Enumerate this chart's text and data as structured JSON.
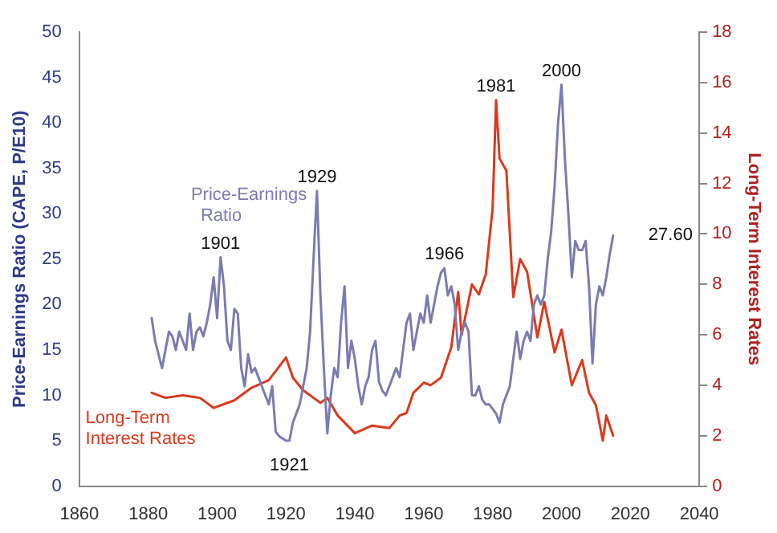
{
  "chart_data": {
    "type": "line",
    "ylabel": "Price-Earnings Ratio (CAPE, P/E10)",
    "y2label": "Long-Term Interest Rates",
    "xlim": [
      1860,
      2040
    ],
    "xticks": [
      1860,
      1880,
      1900,
      1920,
      1940,
      1960,
      1980,
      2000,
      2020,
      2040
    ],
    "ylim": [
      0,
      50
    ],
    "yticks": [
      0,
      5,
      10,
      15,
      20,
      25,
      30,
      35,
      40,
      45,
      50
    ],
    "y2lim": [
      0,
      18
    ],
    "y2ticks": [
      0,
      2,
      4,
      6,
      8,
      10,
      12,
      14,
      16,
      18
    ],
    "grid": false,
    "legend": false,
    "marker": "none",
    "line_style": "solid",
    "series": [
      {
        "name": "Price-Earnings Ratio",
        "color": "#7b7bb0",
        "x": [
          1881,
          1882,
          1883,
          1884,
          1885,
          1886,
          1887,
          1888,
          1889,
          1890,
          1891,
          1892,
          1893,
          1894,
          1895,
          1896,
          1897,
          1898,
          1899,
          1900,
          1901,
          1902,
          1903,
          1904,
          1905,
          1906,
          1907,
          1908,
          1909,
          1910,
          1911,
          1912,
          1913,
          1914,
          1915,
          1916,
          1917,
          1918,
          1920,
          1921,
          1922,
          1923,
          1924,
          1925,
          1926,
          1927,
          1928,
          1929,
          1930,
          1931,
          1932,
          1933,
          1934,
          1935,
          1936,
          1937,
          1938,
          1939,
          1940,
          1941,
          1942,
          1943,
          1944,
          1945,
          1946,
          1947,
          1948,
          1949,
          1950,
          1951,
          1952,
          1953,
          1954,
          1955,
          1956,
          1957,
          1958,
          1959,
          1960,
          1961,
          1962,
          1963,
          1964,
          1965,
          1966,
          1967,
          1968,
          1969,
          1970,
          1971,
          1972,
          1973,
          1974,
          1975,
          1976,
          1977,
          1978,
          1979,
          1980,
          1981,
          1982,
          1983,
          1984,
          1985,
          1986,
          1987,
          1988,
          1989,
          1990,
          1991,
          1992,
          1993,
          1994,
          1995,
          1996,
          1997,
          1998,
          1999,
          2000,
          2001,
          2002,
          2003,
          2004,
          2005,
          2006,
          2007,
          2008,
          2009,
          2010,
          2011,
          2012,
          2013,
          2014,
          2015
        ],
        "values": [
          18.5,
          16,
          14.5,
          13,
          15,
          17,
          16.5,
          15,
          17,
          16,
          15,
          19,
          15,
          17,
          17.5,
          16.5,
          18,
          20,
          23,
          18.5,
          25.2,
          22,
          16,
          15,
          19.5,
          19,
          13,
          11,
          14.5,
          12.5,
          13,
          12,
          11,
          10,
          9,
          11,
          6,
          5.5,
          5,
          5,
          7,
          8,
          9,
          11,
          13,
          17,
          25,
          32.5,
          21,
          13,
          5.8,
          10,
          13,
          12,
          18,
          22,
          13,
          16,
          14,
          11,
          9,
          11,
          12,
          15,
          16,
          11.5,
          10.5,
          10,
          11,
          12,
          13,
          12,
          15,
          18,
          19,
          15,
          17,
          19,
          18,
          21,
          18,
          20,
          22,
          23.5,
          24,
          21,
          22,
          20,
          15,
          17,
          18,
          17,
          10,
          10,
          11,
          9.5,
          9,
          9,
          8.5,
          8,
          7,
          9,
          10,
          11,
          14,
          17,
          14,
          16,
          17,
          16,
          20,
          21,
          20,
          21,
          25,
          28,
          33,
          40,
          44.2,
          36,
          30,
          23,
          27,
          26,
          26,
          27,
          22,
          13.5,
          20,
          22,
          21,
          23,
          25.5,
          27.6
        ]
      },
      {
        "name": "Long-Term Interest Rates",
        "color": "#d93a1e",
        "axis": "y2",
        "x": [
          1881,
          1885,
          1890,
          1895,
          1899,
          1905,
          1910,
          1915,
          1920,
          1922,
          1925,
          1930,
          1932,
          1935,
          1940,
          1945,
          1950,
          1953,
          1955,
          1957,
          1960,
          1962,
          1965,
          1968,
          1970,
          1971,
          1974,
          1976,
          1978,
          1980,
          1981,
          1982,
          1984,
          1986,
          1988,
          1990,
          1993,
          1995,
          1998,
          2000,
          2003,
          2006,
          2008,
          2010,
          2012,
          2013,
          2015
        ],
        "values": [
          3.7,
          3.5,
          3.6,
          3.5,
          3.1,
          3.4,
          3.9,
          4.2,
          5.1,
          4.3,
          3.8,
          3.3,
          3.5,
          2.8,
          2.1,
          2.4,
          2.3,
          2.8,
          2.9,
          3.7,
          4.1,
          4,
          4.3,
          5.5,
          7.7,
          6,
          8,
          7.6,
          8.4,
          11,
          15.3,
          13,
          12.5,
          7.5,
          9,
          8.5,
          5.9,
          7.3,
          5.3,
          6.2,
          4,
          5,
          3.7,
          3.2,
          1.8,
          2.8,
          2
        ]
      }
    ],
    "annotations": [
      {
        "text": "1901",
        "x": 1901,
        "y": 25.2
      },
      {
        "text": "1929",
        "x": 1929,
        "y": 32.5
      },
      {
        "text": "1921",
        "x": 1921,
        "y": 5
      },
      {
        "text": "1966",
        "x": 1966,
        "y": 24
      },
      {
        "text": "1981",
        "x": 1981,
        "y": 42.5
      },
      {
        "text": "2000",
        "x": 2000,
        "y": 44.2
      },
      {
        "text": "27.60",
        "x": 2015,
        "y": 27.6
      }
    ]
  }
}
